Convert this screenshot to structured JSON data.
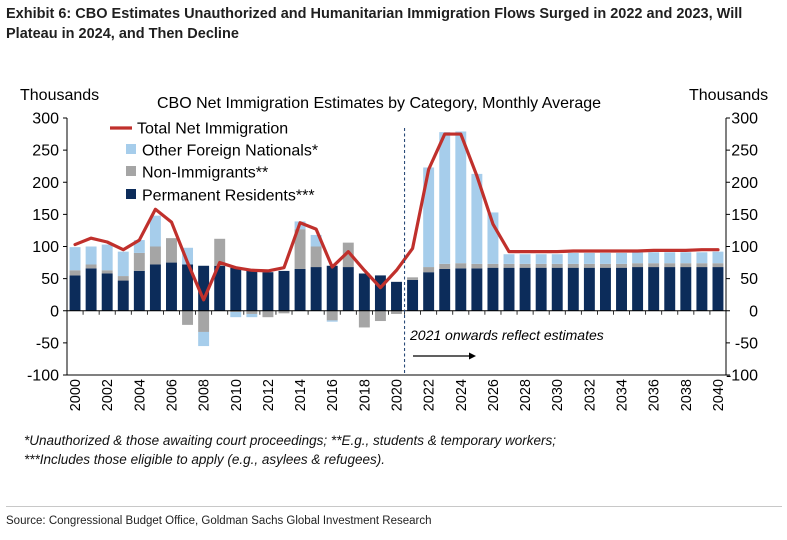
{
  "exhibit_title": "Exhibit 6: CBO Estimates Unauthorized and Humanitarian Immigration Flows Surged in 2022 and 2023, Will Plateau in 2024, and Then Decline",
  "footnotes": [
    "*Unauthorized & those awaiting court proceedings; **E.g., students & temporary workers;",
    "***Includes those eligible to apply (e.g., asylees & refugees)."
  ],
  "source": "Source: Congressional Budget Office, Goldman Sachs Global Investment Research",
  "colors": {
    "total": "#c0302c",
    "other": "#a6cdeb",
    "nonimm": "#a5a5a5",
    "permanent": "#0c2c5a",
    "divider": "#2a4a78"
  },
  "chart_data": {
    "type": "bar",
    "title": "CBO Net Immigration Estimates by Category, Monthly Average",
    "ylabel_left": "Thousands",
    "ylabel_right": "Thousands",
    "ylim": [
      -100,
      300
    ],
    "yticks": [
      300,
      250,
      200,
      150,
      100,
      50,
      0,
      -50,
      -100
    ],
    "x": [
      2000,
      2001,
      2002,
      2003,
      2004,
      2005,
      2006,
      2007,
      2008,
      2009,
      2010,
      2011,
      2012,
      2013,
      2014,
      2015,
      2016,
      2017,
      2018,
      2019,
      2020,
      2021,
      2022,
      2023,
      2024,
      2025,
      2026,
      2027,
      2028,
      2029,
      2030,
      2031,
      2032,
      2033,
      2034,
      2035,
      2036,
      2037,
      2038,
      2039,
      2040
    ],
    "xticks": [
      "2000",
      "2002",
      "2004",
      "2006",
      "2008",
      "2010",
      "2012",
      "2014",
      "2016",
      "2018",
      "2020",
      "2022",
      "2024",
      "2026",
      "2028",
      "2030",
      "2032",
      "2034",
      "2036",
      "2038",
      "2040"
    ],
    "legend": [
      "Total Net Immigration",
      "Other Foreign Nationals*",
      "Non-Immigrants**",
      "Permanent Residents***"
    ],
    "legend_position": "top-left",
    "annotation": "2021 onwards reflect estimates",
    "series": [
      {
        "name": "Permanent Residents***",
        "kind": "stacked-bar",
        "values": [
          55,
          66,
          58,
          47,
          62,
          72,
          75,
          72,
          70,
          70,
          67,
          63,
          60,
          62,
          65,
          68,
          70,
          68,
          58,
          55,
          45,
          48,
          60,
          65,
          66,
          66,
          67,
          67,
          67,
          67,
          67,
          67,
          67,
          67,
          67,
          68,
          68,
          68,
          68,
          68,
          68
        ]
      },
      {
        "name": "Non-Immigrants**",
        "kind": "stacked-bar",
        "values": [
          8,
          6,
          5,
          7,
          28,
          28,
          38,
          -22,
          -33,
          42,
          -2,
          -5,
          -10,
          -4,
          62,
          32,
          -15,
          38,
          -26,
          -16,
          -5,
          4,
          8,
          8,
          8,
          7,
          6,
          6,
          6,
          6,
          6,
          6,
          6,
          6,
          6,
          6,
          6,
          6,
          6,
          6,
          6
        ]
      },
      {
        "name": "Other Foreign Nationals*",
        "kind": "stacked-bar",
        "values": [
          36,
          28,
          40,
          38,
          20,
          48,
          0,
          26,
          -22,
          0,
          -8,
          -5,
          0,
          0,
          12,
          18,
          -2,
          0,
          0,
          0,
          0,
          0,
          155,
          205,
          205,
          140,
          80,
          15,
          15,
          15,
          15,
          17,
          17,
          17,
          17,
          17,
          17,
          17,
          17,
          17,
          18
        ]
      },
      {
        "name": "Total Net Immigration",
        "kind": "line",
        "values": [
          103,
          113,
          107,
          95,
          110,
          158,
          138,
          75,
          17,
          75,
          67,
          63,
          62,
          67,
          137,
          127,
          68,
          92,
          63,
          36,
          63,
          97,
          220,
          275,
          275,
          210,
          135,
          92,
          92,
          92,
          92,
          93,
          93,
          93,
          93,
          93,
          94,
          94,
          94,
          95,
          95
        ]
      }
    ]
  }
}
